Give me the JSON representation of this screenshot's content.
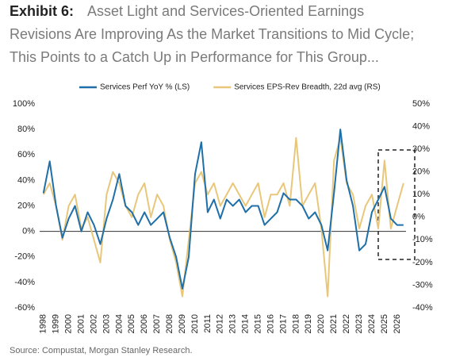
{
  "chart_data": {
    "type": "line",
    "exhibit": "Exhibit 6:",
    "title_lines": [
      "Asset Light and Services-Oriented Earnings",
      "Revisions Are Improving As the Market Transitions to Mid Cycle;",
      "This Points to a Catch Up in Performance for This Group..."
    ],
    "source": "Source: Compustat, Morgan Stanley Research.",
    "x": [
      1998,
      1998.5,
      1999,
      1999.5,
      2000,
      2000.5,
      2001,
      2001.5,
      2002,
      2002.5,
      2003,
      2003.5,
      2004,
      2004.5,
      2005,
      2005.5,
      2006,
      2006.5,
      2007,
      2007.5,
      2008,
      2008.5,
      2009,
      2009.5,
      2010,
      2010.5,
      2011,
      2011.5,
      2012,
      2012.5,
      2013,
      2013.5,
      2014,
      2014.5,
      2015,
      2015.5,
      2016,
      2016.5,
      2017,
      2017.5,
      2018,
      2018.5,
      2019,
      2019.5,
      2020,
      2020.5,
      2021,
      2021.5,
      2022,
      2022.5,
      2023,
      2023.5,
      2024,
      2024.5,
      2025,
      2025.5,
      2026,
      2026.5
    ],
    "series": [
      {
        "name": "Services Perf YoY % (LS)",
        "color": "#1f6fa8",
        "values": [
          30,
          55,
          20,
          -5,
          10,
          20,
          0,
          15,
          5,
          -10,
          10,
          25,
          45,
          20,
          15,
          5,
          15,
          5,
          10,
          15,
          -5,
          -20,
          -45,
          -20,
          45,
          70,
          15,
          25,
          10,
          25,
          20,
          25,
          15,
          20,
          20,
          5,
          10,
          15,
          30,
          25,
          25,
          20,
          10,
          15,
          5,
          -15,
          30,
          80,
          40,
          20,
          -15,
          -10,
          15,
          25,
          35,
          10,
          5,
          5
        ]
      },
      {
        "name": "Services EPS-Rev Breadth, 22d avg (RS)",
        "color": "#e8c77a",
        "axis": "y2",
        "values": [
          10,
          15,
          5,
          -10,
          5,
          10,
          -5,
          0,
          -10,
          -20,
          10,
          20,
          15,
          5,
          0,
          10,
          15,
          0,
          10,
          5,
          -10,
          -20,
          -35,
          -10,
          15,
          20,
          10,
          15,
          5,
          10,
          15,
          10,
          5,
          10,
          15,
          0,
          10,
          10,
          15,
          5,
          35,
          5,
          10,
          15,
          -5,
          -35,
          25,
          35,
          15,
          10,
          -5,
          5,
          10,
          -5,
          25,
          -5,
          5,
          15
        ]
      }
    ],
    "xlim": [
      1997.7,
      2026.7
    ],
    "xticks": [
      1998,
      1999,
      2000,
      2001,
      2002,
      2003,
      2004,
      2005,
      2006,
      2007,
      2008,
      2009,
      2010,
      2011,
      2012,
      2013,
      2014,
      2015,
      2016,
      2017,
      2018,
      2019,
      2020,
      2021,
      2022,
      2023,
      2024,
      2025,
      2026
    ],
    "ylim": [
      -60,
      100
    ],
    "yticks": [
      {
        "value": -60,
        "label": "-60%"
      },
      {
        "value": -40,
        "label": "-40%"
      },
      {
        "value": -20,
        "label": "-20%"
      },
      {
        "value": 0,
        "label": "0%"
      },
      {
        "value": 20,
        "label": "20%"
      },
      {
        "value": 40,
        "label": "40%"
      },
      {
        "value": 60,
        "label": "60%"
      },
      {
        "value": 80,
        "label": "80%"
      },
      {
        "value": 100,
        "label": "100%"
      }
    ],
    "y2lim": [
      -40,
      50
    ],
    "y2ticks": [
      {
        "value": -40,
        "label": "-40%"
      },
      {
        "value": -30,
        "label": "-30%"
      },
      {
        "value": -20,
        "label": "-20%"
      },
      {
        "value": -10,
        "label": "-10%"
      },
      {
        "value": 0,
        "label": "0%"
      },
      {
        "value": 10,
        "label": "10%"
      },
      {
        "value": 20,
        "label": "20%"
      },
      {
        "value": 30,
        "label": "30%"
      },
      {
        "value": 40,
        "label": "40%"
      },
      {
        "value": 50,
        "label": "50%"
      }
    ],
    "grid": false
  }
}
